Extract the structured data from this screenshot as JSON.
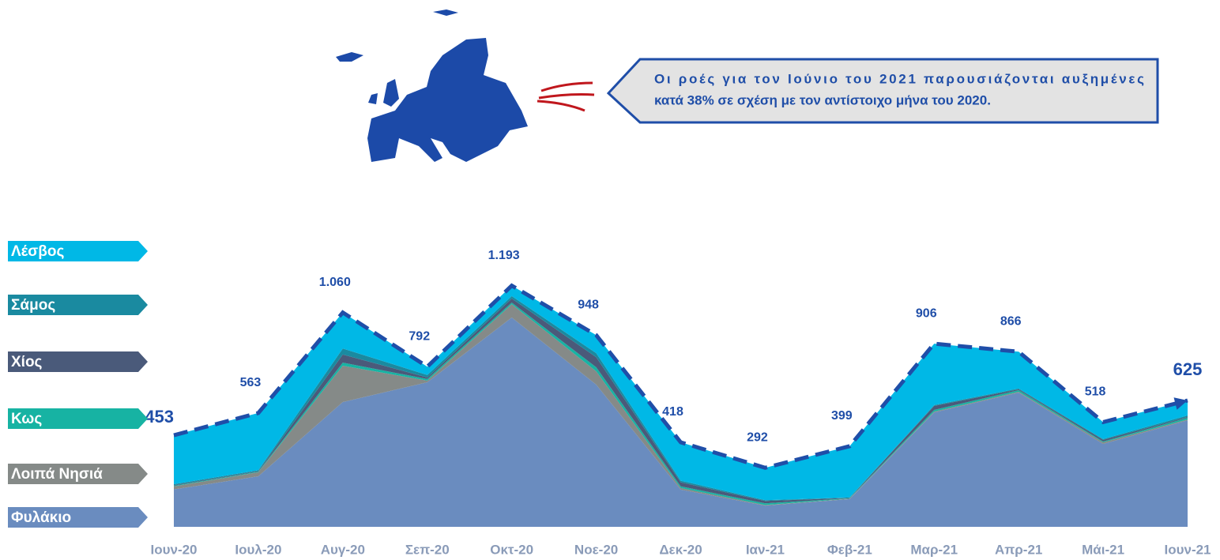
{
  "callout": {
    "lines": [
      "Οι ροές για τον Ιούνιο του 2021 παρουσιάζονται αυξημένες",
      "κατά 38% σε σχέση με τον αντίστοιχο μήνα του 2020."
    ]
  },
  "chart_data": {
    "type": "stacked-area",
    "categories": [
      "Ιουν-20",
      "Ιουλ-20",
      "Αυγ-20",
      "Σεπ-20",
      "Οκτ-20",
      "Νοε-20",
      "Δεκ-20",
      "Ιαν-21",
      "Φεβ-21",
      "Μαρ-21",
      "Απρ-21",
      "Μάι-21",
      "Ιουν-21"
    ],
    "series": [
      {
        "name": "Φυλάκιο",
        "color": "#6a8cbf",
        "values": [
          185,
          250,
          617,
          715,
          1035,
          703,
          184,
          105,
          137,
          566,
          664,
          410,
          527
        ]
      },
      {
        "name": "Λοιπά Νησιά",
        "color": "#858a88",
        "values": [
          15,
          20,
          180,
          8,
          66,
          66,
          8,
          3,
          2,
          4,
          4,
          8,
          4
        ]
      },
      {
        "name": "Κως",
        "color": "#17b3a3",
        "values": [
          3,
          3,
          15,
          8,
          8,
          20,
          8,
          8,
          2,
          8,
          8,
          4,
          8
        ]
      },
      {
        "name": "Χίος",
        "color": "#4a5a7a",
        "values": [
          3,
          3,
          40,
          8,
          20,
          50,
          20,
          12,
          2,
          20,
          4,
          8,
          4
        ]
      },
      {
        "name": "Σάμος",
        "color": "#1a8aa0",
        "values": [
          5,
          4,
          30,
          12,
          12,
          20,
          8,
          4,
          2,
          4,
          4,
          4,
          8
        ]
      },
      {
        "name": "Λέσβος",
        "color": "#00b8e6",
        "values": [
          242,
          283,
          178,
          41,
          52,
          89,
          190,
          160,
          254,
          304,
          182,
          84,
          74
        ]
      }
    ],
    "totals": [
      453,
      563,
      1060,
      792,
      1193,
      948,
      418,
      292,
      399,
      906,
      866,
      518,
      625
    ],
    "value_labels": [
      "453",
      "563",
      "1.060",
      "792",
      "1.193",
      "948",
      "418",
      "292",
      "399",
      "906",
      "866",
      "518",
      "625"
    ],
    "total_color": "#1f4ea8"
  }
}
